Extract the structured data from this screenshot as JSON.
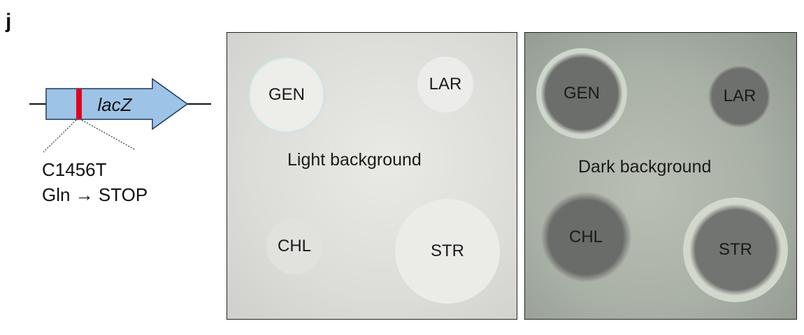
{
  "panel_letter": "j",
  "gene": {
    "name": "lacZ",
    "mutation_line1": "C1456T",
    "mutation_line2": "Gln → STOP"
  },
  "plates": [
    {
      "label": "Light background",
      "discs": [
        {
          "label": "GEN",
          "halo": "strong"
        },
        {
          "label": "LAR",
          "halo": "none"
        },
        {
          "label": "CHL",
          "halo": "none"
        },
        {
          "label": "STR",
          "halo": "strong"
        }
      ]
    },
    {
      "label": "Dark background",
      "discs": [
        {
          "label": "GEN",
          "halo": "strong"
        },
        {
          "label": "LAR",
          "halo": "weak"
        },
        {
          "label": "CHL",
          "halo": "none"
        },
        {
          "label": "STR",
          "halo": "strong"
        }
      ]
    }
  ],
  "colors": {
    "gene_fill": "#9dc3e6",
    "mutation_mark": "#e0001b",
    "halo_blue": "#2aa9b4"
  }
}
